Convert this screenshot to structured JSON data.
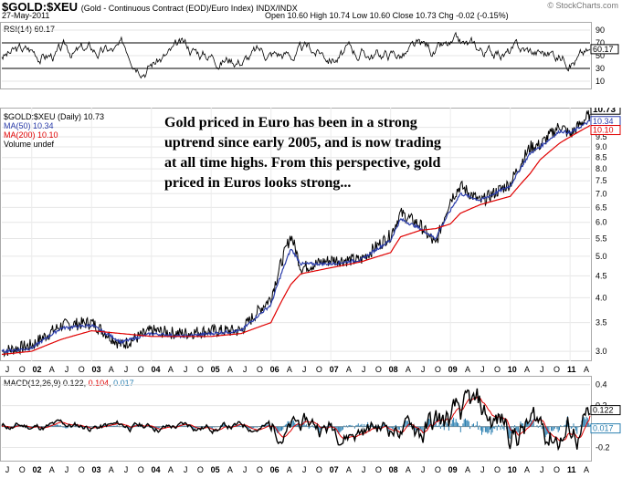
{
  "header": {
    "symbol": "$GOLD:$XEU",
    "description": "(Gold - Continuous Contract (EOD)/Euro Index)  INDX/INDX",
    "date": "27-May-2011",
    "ohlc": "Open 10.60  High 10.74  Low 10.60  Close 10.73  Chg -0.02 (-0.15%)",
    "watermark": "© StockCharts.com"
  },
  "rsi": {
    "legend": "RSI(14) 60.17",
    "current": "60.17",
    "levels": [
      "90",
      "70",
      "50",
      "30",
      "10"
    ]
  },
  "price": {
    "legend_lines": [
      "$GOLD:$XEU (Daily) 10.73",
      "MA(50) 10.34",
      "MA(200) 10.10",
      "Volume undef"
    ],
    "current_labels": [
      "10.73",
      "10.34",
      "10.10"
    ],
    "annotation": "Gold priced in Euro has been in a strong uptrend since early 2005, and is now trading at all time highs. From this perspective, gold priced in Euros looks strong..."
  },
  "macd": {
    "legend_prefix": "MACD(12,26,9)",
    "macd": "0.122",
    "signal": "0.104",
    "hist": "0.017",
    "levels": [
      "0.4",
      "0.2",
      "0.0",
      "-0.2"
    ],
    "current_labels": [
      "0.122",
      "0.017"
    ]
  },
  "x_axis": {
    "labels": [
      "J",
      "O",
      "02",
      "A",
      "J",
      "O",
      "03",
      "A",
      "J",
      "O",
      "04",
      "A",
      "J",
      "O",
      "05",
      "A",
      "J",
      "O",
      "06",
      "A",
      "J",
      "O",
      "07",
      "A",
      "J",
      "O",
      "08",
      "A",
      "J",
      "O",
      "09",
      "A",
      "J",
      "O",
      "10",
      "A",
      "J",
      "O",
      "11",
      "A"
    ]
  },
  "colors": {
    "price": "#000000",
    "ma50": "#2a3caa",
    "ma200": "#e00000",
    "macd_signal": "#e00000",
    "macd_hist": "#2a7fb0"
  },
  "chart_data": [
    {
      "type": "line",
      "title": "$GOLD:$XEU (Daily)",
      "ylabel": "",
      "ylim": [
        2.9,
        10.9
      ],
      "y_ticks": [
        "3.0",
        "3.5",
        "4.0",
        "4.5",
        "5.0",
        "5.5",
        "6.0",
        "6.5",
        "7.0",
        "7.5",
        "8.0",
        "8.5",
        "9.0",
        "9.5",
        "10.0"
      ],
      "x": [
        "2001-07",
        "2002-01",
        "2002-07",
        "2003-01",
        "2003-07",
        "2004-01",
        "2004-07",
        "2005-01",
        "2005-07",
        "2006-01",
        "2006-05",
        "2006-07",
        "2007-01",
        "2007-07",
        "2008-01",
        "2008-03",
        "2008-07",
        "2008-10",
        "2009-01",
        "2009-03",
        "2009-07",
        "2010-01",
        "2010-05",
        "2010-07",
        "2010-11",
        "2011-01",
        "2011-05"
      ],
      "series": [
        {
          "name": "$GOLD:$XEU",
          "values": [
            3.0,
            3.1,
            3.45,
            3.5,
            3.1,
            3.35,
            3.3,
            3.35,
            3.35,
            4.0,
            5.6,
            4.7,
            4.9,
            4.9,
            5.6,
            6.3,
            5.9,
            5.3,
            6.8,
            7.3,
            6.7,
            7.4,
            9.0,
            9.1,
            10.1,
            9.6,
            10.73
          ]
        },
        {
          "name": "MA(50)",
          "values": [
            3.0,
            3.05,
            3.4,
            3.45,
            3.15,
            3.3,
            3.25,
            3.3,
            3.35,
            3.85,
            5.2,
            4.8,
            4.8,
            4.9,
            5.45,
            6.1,
            5.8,
            5.5,
            6.4,
            7.0,
            6.75,
            7.3,
            8.7,
            9.0,
            9.8,
            9.7,
            10.34
          ]
        },
        {
          "name": "MA(200)",
          "values": [
            2.95,
            3.0,
            3.2,
            3.35,
            3.3,
            3.25,
            3.25,
            3.25,
            3.3,
            3.5,
            4.3,
            4.55,
            4.7,
            4.85,
            5.1,
            5.55,
            5.75,
            5.8,
            5.95,
            6.3,
            6.6,
            6.9,
            7.8,
            8.4,
            9.2,
            9.5,
            10.1
          ]
        }
      ]
    },
    {
      "type": "line",
      "title": "RSI(14)",
      "ylim": [
        0,
        100
      ],
      "y_ticks": [
        "90",
        "70",
        "50",
        "30",
        "10"
      ],
      "series": [
        {
          "name": "RSI(14)",
          "last": 60.17
        }
      ]
    },
    {
      "type": "line",
      "title": "MACD(12,26,9)",
      "ylim": [
        -0.3,
        0.45
      ],
      "y_ticks": [
        "0.4",
        "0.2",
        "0.0",
        "-0.2"
      ],
      "series": [
        {
          "name": "MACD",
          "last": 0.122
        },
        {
          "name": "Signal",
          "last": 0.104
        },
        {
          "name": "Histogram",
          "last": 0.017
        }
      ]
    }
  ]
}
